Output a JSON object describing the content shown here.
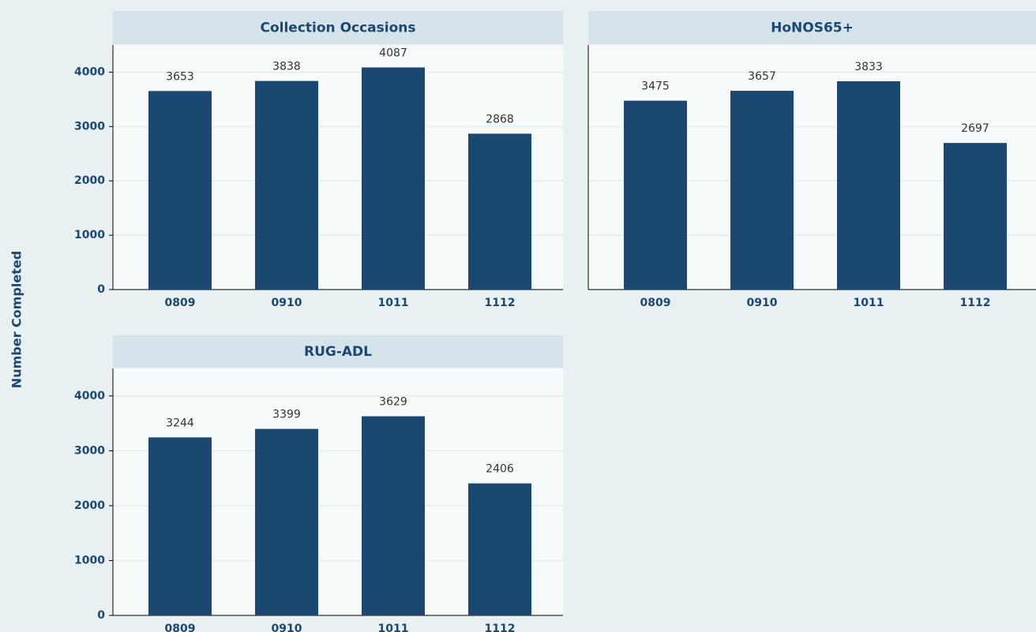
{
  "ylabel": "Number Completed",
  "chart_data": [
    {
      "type": "bar",
      "title": "Collection Occasions",
      "categories": [
        "0809",
        "0910",
        "1011",
        "1112"
      ],
      "values": [
        3653,
        3838,
        4087,
        2868
      ],
      "color": "#1b4870",
      "ylim": [
        0,
        4500
      ],
      "yticks": [
        0,
        1000,
        2000,
        3000,
        4000
      ],
      "grid": true,
      "ytick_labels": true
    },
    {
      "type": "bar",
      "title": "HoNOS65+",
      "categories": [
        "0809",
        "0910",
        "1011",
        "1112"
      ],
      "values": [
        3475,
        3657,
        3833,
        2697
      ],
      "color": "#1b4870",
      "ylim": [
        0,
        4500
      ],
      "yticks": [
        0,
        1000,
        2000,
        3000,
        4000
      ],
      "grid": true,
      "ytick_labels": false
    },
    {
      "type": "bar",
      "title": "RUG-ADL",
      "categories": [
        "0809",
        "0910",
        "1011",
        "1112"
      ],
      "values": [
        3244,
        3399,
        3629,
        2406
      ],
      "color": "#1b4870",
      "ylim": [
        0,
        4500
      ],
      "yticks": [
        0,
        1000,
        2000,
        3000,
        4000
      ],
      "grid": true,
      "ytick_labels": true
    }
  ]
}
